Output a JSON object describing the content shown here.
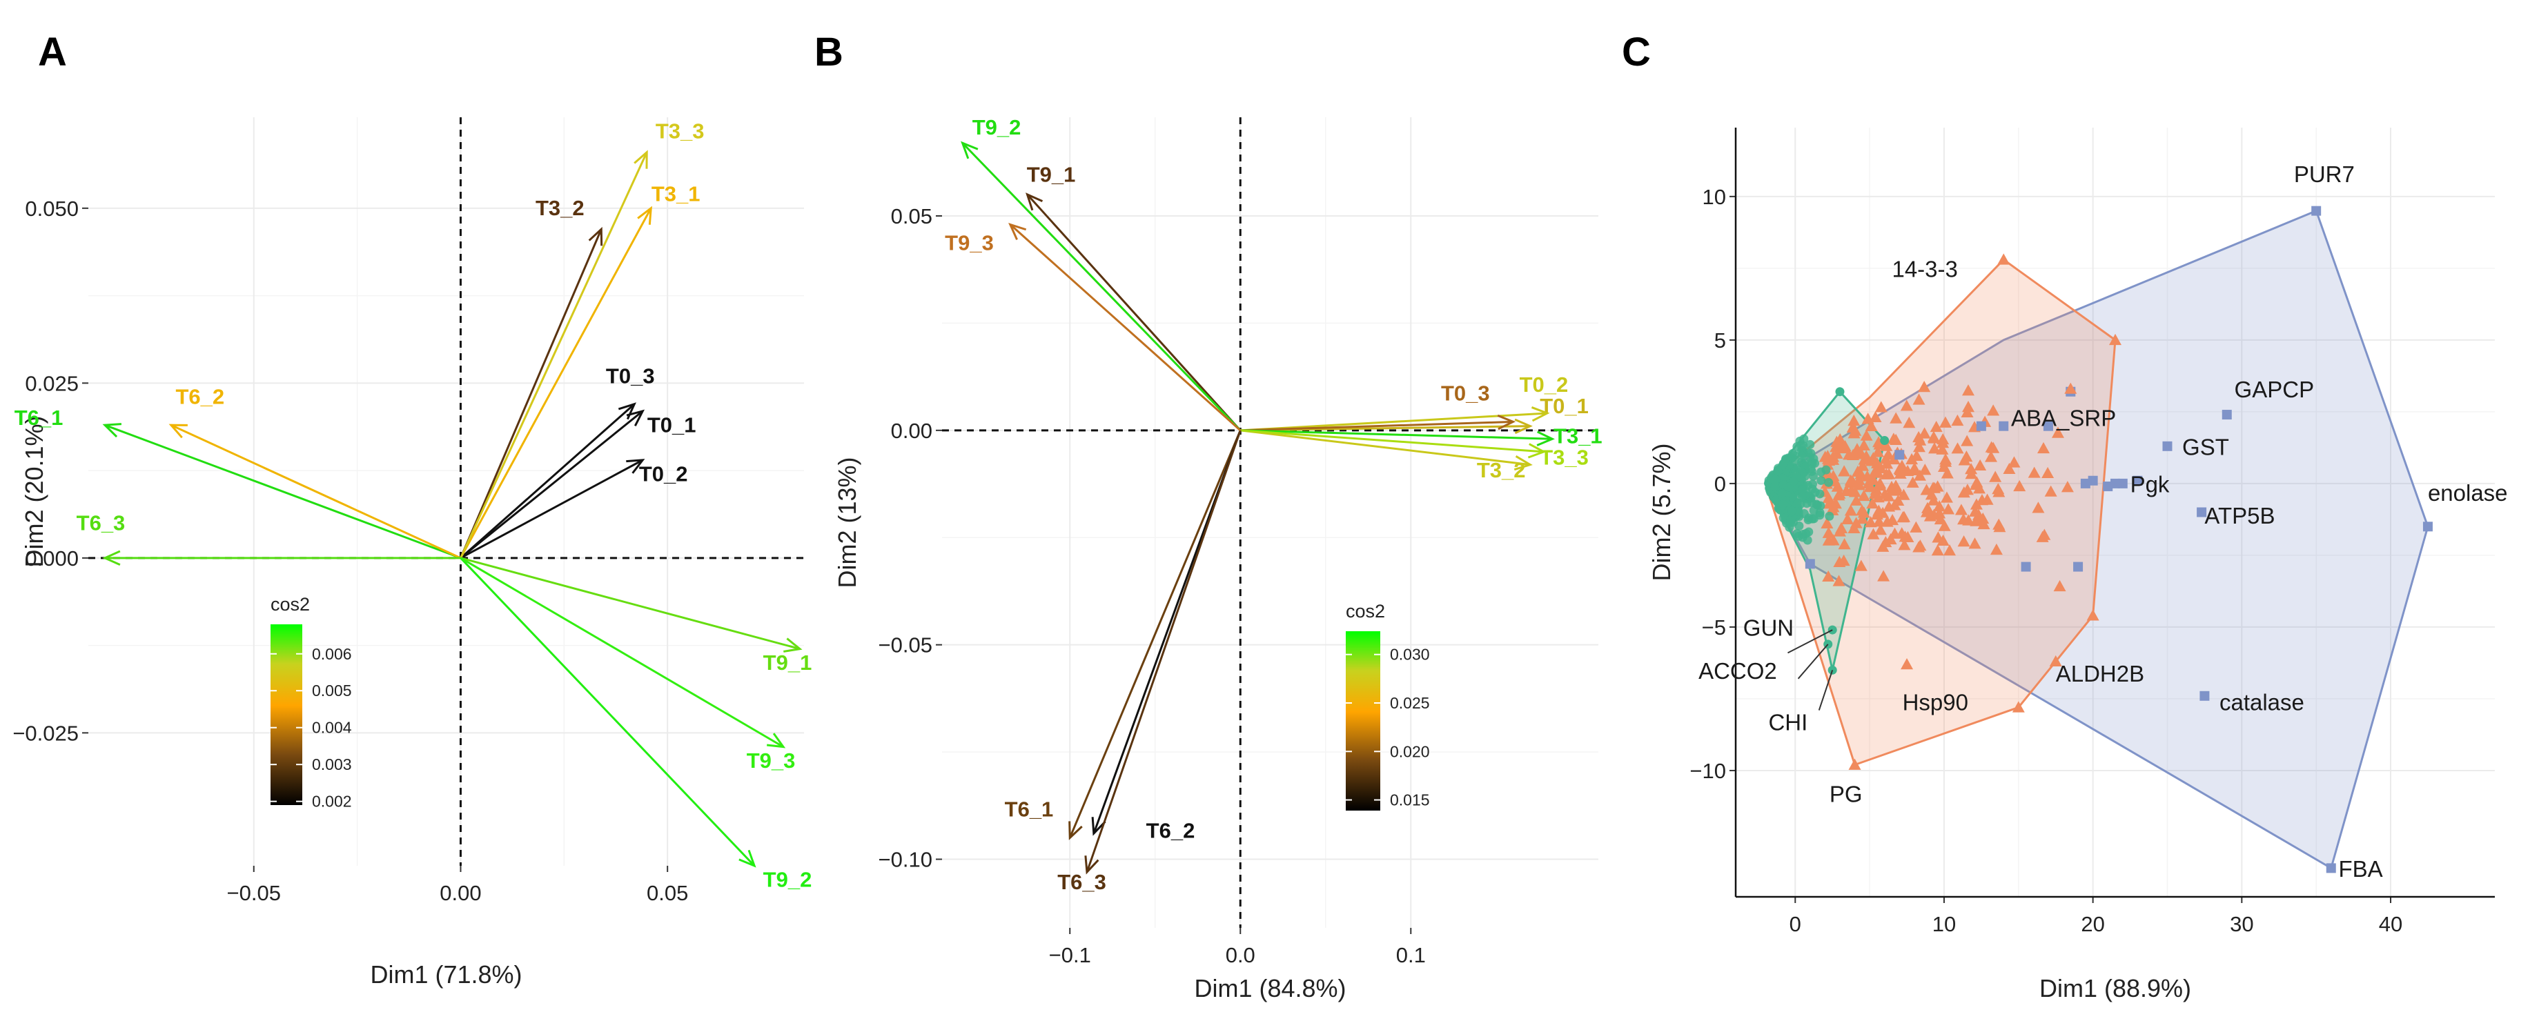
{
  "chart_data": [
    {
      "id": "A",
      "type": "scatter",
      "subtype": "pca-variable-arrows",
      "panel_label": "A",
      "xlabel": "Dim1 (71.8%)",
      "ylabel": "Dim2 (20.1%)",
      "xlim": [
        -0.09,
        0.083
      ],
      "ylim": [
        -0.044,
        0.063
      ],
      "xticks": [
        -0.05,
        0.0,
        0.05
      ],
      "xtick_labels": [
        "−0.05",
        "0.00",
        "0.05"
      ],
      "yticks": [
        -0.025,
        0.0,
        0.025,
        0.05
      ],
      "ytick_labels": [
        "−0.025",
        "0.000",
        "0.025",
        "0.050"
      ],
      "legend": {
        "title": "cos2",
        "position": "lower-left",
        "ticks": [
          0.002,
          0.003,
          0.004,
          0.005,
          0.006
        ],
        "tick_labels": [
          "0.002",
          "0.003",
          "0.004",
          "0.005",
          "0.006"
        ],
        "range": [
          0.0019,
          0.0068
        ],
        "colors": [
          "#000000",
          "#7a4a10",
          "#ffa500",
          "#c8d21e",
          "#00ff00"
        ]
      },
      "vectors": [
        {
          "name": "T0_1",
          "label": "T0_1",
          "x": 0.044,
          "y": 0.021,
          "color": "#111111",
          "lx": 0.051,
          "ly": 0.018
        },
        {
          "name": "T0_2",
          "label": "T0_2",
          "x": 0.044,
          "y": 0.014,
          "color": "#111111",
          "lx": 0.049,
          "ly": 0.011
        },
        {
          "name": "T0_3",
          "label": "T0_3",
          "x": 0.042,
          "y": 0.022,
          "color": "#111111",
          "lx": 0.041,
          "ly": 0.025
        },
        {
          "name": "T3_1",
          "label": "T3_1",
          "x": 0.046,
          "y": 0.05,
          "color": "#f0b400",
          "lx": 0.052,
          "ly": 0.051
        },
        {
          "name": "T3_2",
          "label": "T3_2",
          "x": 0.034,
          "y": 0.047,
          "color": "#5a3310",
          "lx": 0.024,
          "ly": 0.049
        },
        {
          "name": "T3_3",
          "label": "T3_3",
          "x": 0.045,
          "y": 0.058,
          "color": "#d4c81c",
          "lx": 0.053,
          "ly": 0.06
        },
        {
          "name": "T6_1",
          "label": "T6_1",
          "x": -0.086,
          "y": 0.019,
          "color": "#22dd11",
          "lx": -0.102,
          "ly": 0.019
        },
        {
          "name": "T6_2",
          "label": "T6_2",
          "x": -0.07,
          "y": 0.019,
          "color": "#f0b400",
          "lx": -0.063,
          "ly": 0.022
        },
        {
          "name": "T6_3",
          "label": "T6_3",
          "x": -0.086,
          "y": 0.0,
          "color": "#55dd11",
          "lx": -0.087,
          "ly": 0.004
        },
        {
          "name": "T9_1",
          "label": "T9_1",
          "x": 0.082,
          "y": -0.013,
          "color": "#66dd11",
          "lx": 0.079,
          "ly": -0.016
        },
        {
          "name": "T9_2",
          "label": "T9_2",
          "x": 0.071,
          "y": -0.044,
          "color": "#22ee11",
          "lx": 0.079,
          "ly": -0.047
        },
        {
          "name": "T9_3",
          "label": "T9_3",
          "x": 0.078,
          "y": -0.027,
          "color": "#33ee11",
          "lx": 0.075,
          "ly": -0.03
        }
      ]
    },
    {
      "id": "B",
      "type": "scatter",
      "subtype": "pca-variable-arrows",
      "panel_label": "B",
      "xlabel": "Dim1 (84.8%)",
      "ylabel": "Dim2 (13%)",
      "xlim": [
        -0.175,
        0.21
      ],
      "ylim": [
        -0.116,
        0.073
      ],
      "xticks": [
        -0.1,
        0.0,
        0.1
      ],
      "xtick_labels": [
        "−0.1",
        "0.0",
        "0.1"
      ],
      "yticks": [
        -0.1,
        -0.05,
        0.0,
        0.05
      ],
      "ytick_labels": [
        "−0.10",
        "−0.05",
        "0.00",
        "0.05"
      ],
      "legend": {
        "title": "cos2",
        "position": "lower-right",
        "ticks": [
          0.015,
          0.02,
          0.025,
          0.03
        ],
        "tick_labels": [
          "0.015",
          "0.020",
          "0.025",
          "0.030"
        ],
        "range": [
          0.0139,
          0.0324
        ],
        "colors": [
          "#000000",
          "#7a4a10",
          "#ffa500",
          "#c8d21e",
          "#00ff00"
        ]
      },
      "vectors": [
        {
          "name": "T0_1",
          "label": "T0_1",
          "x": 0.17,
          "y": 0.001,
          "color": "#c9b41a",
          "lx": 0.19,
          "ly": 0.004
        },
        {
          "name": "T0_2",
          "label": "T0_2",
          "x": 0.18,
          "y": 0.004,
          "color": "#c9c81a",
          "lx": 0.178,
          "ly": 0.009
        },
        {
          "name": "T0_3",
          "label": "T0_3",
          "x": 0.16,
          "y": 0.002,
          "color": "#a8661a",
          "lx": 0.132,
          "ly": 0.007
        },
        {
          "name": "T3_1",
          "label": "T3_1",
          "x": 0.183,
          "y": -0.002,
          "color": "#22dd11",
          "lx": 0.198,
          "ly": -0.003
        },
        {
          "name": "T3_2",
          "label": "T3_2",
          "x": 0.17,
          "y": -0.008,
          "color": "#c9c81a",
          "lx": 0.153,
          "ly": -0.011
        },
        {
          "name": "T3_3",
          "label": "T3_3",
          "x": 0.178,
          "y": -0.005,
          "color": "#aadd11",
          "lx": 0.19,
          "ly": -0.008
        },
        {
          "name": "T6_1",
          "label": "T6_1",
          "x": -0.1,
          "y": -0.095,
          "color": "#6b4010",
          "lx": -0.124,
          "ly": -0.09
        },
        {
          "name": "T6_2",
          "label": "T6_2",
          "x": -0.086,
          "y": -0.094,
          "color": "#111111",
          "lx": -0.041,
          "ly": -0.095
        },
        {
          "name": "T6_3",
          "label": "T6_3",
          "x": -0.09,
          "y": -0.103,
          "color": "#5a3410",
          "lx": -0.093,
          "ly": -0.107
        },
        {
          "name": "T9_1",
          "label": "T9_1",
          "x": -0.125,
          "y": 0.055,
          "color": "#5a3310",
          "lx": -0.111,
          "ly": 0.058
        },
        {
          "name": "T9_2",
          "label": "T9_2",
          "x": -0.163,
          "y": 0.067,
          "color": "#22dd11",
          "lx": -0.143,
          "ly": 0.069
        },
        {
          "name": "T9_3",
          "label": "T9_3",
          "x": -0.135,
          "y": 0.048,
          "color": "#c07020",
          "lx": -0.159,
          "ly": 0.042
        }
      ]
    },
    {
      "id": "C",
      "type": "scatter",
      "subtype": "pca-individuals-convex-hulls",
      "panel_label": "C",
      "xlabel": "Dim1 (88.9%)",
      "ylabel": "Dim2 (5.7%)",
      "xlim": [
        -4,
        47
      ],
      "ylim": [
        -14.4,
        12.4
      ],
      "xticks": [
        0,
        10,
        20,
        30,
        40
      ],
      "xtick_labels": [
        "0",
        "10",
        "20",
        "30",
        "40"
      ],
      "yticks": [
        -10,
        -5,
        0,
        5,
        10
      ],
      "ytick_labels": [
        "−10",
        "−5",
        "0",
        "5",
        "10"
      ],
      "groups": [
        {
          "name": "blue-squares",
          "color": "#7f93c8",
          "marker": "square",
          "hull": [
            [
              35,
              9.5
            ],
            [
              42.5,
              -1.5
            ],
            [
              36,
              -13.4
            ],
            [
              1,
              -2.8
            ],
            [
              -2,
              0
            ],
            [
              14,
              5
            ]
          ],
          "points": [
            {
              "x": 35,
              "y": 9.5,
              "label": "PUR7"
            },
            {
              "x": 29,
              "y": 2.4,
              "label": "GAPCP"
            },
            {
              "x": 25,
              "y": 1.3,
              "label": "GST"
            },
            {
              "x": 22,
              "y": 0,
              "label": "Pgk"
            },
            {
              "x": 27.3,
              "y": -1.0,
              "label": "ATP5B"
            },
            {
              "x": 42.5,
              "y": -1.5,
              "label": "enolase"
            },
            {
              "x": 27.5,
              "y": -7.4,
              "label": "catalase"
            },
            {
              "x": 36,
              "y": -13.4,
              "label": "FBA"
            },
            {
              "x": 18.5,
              "y": 3.2,
              "label": ""
            },
            {
              "x": 17,
              "y": 2.0,
              "label": ""
            },
            {
              "x": 14,
              "y": 2.0,
              "label": ""
            },
            {
              "x": 12.5,
              "y": 2.0,
              "label": ""
            },
            {
              "x": 20,
              "y": 0.1,
              "label": ""
            },
            {
              "x": 21,
              "y": -0.1,
              "label": ""
            },
            {
              "x": 19.5,
              "y": 0.0,
              "label": ""
            },
            {
              "x": 21.5,
              "y": 0.0,
              "label": ""
            },
            {
              "x": 23,
              "y": 0.1,
              "label": ""
            },
            {
              "x": 19,
              "y": -2.9,
              "label": ""
            },
            {
              "x": 15.5,
              "y": -2.9,
              "label": ""
            },
            {
              "x": 1,
              "y": -2.8,
              "label": ""
            },
            {
              "x": 7,
              "y": 1.0,
              "label": ""
            }
          ]
        },
        {
          "name": "orange-triangles",
          "color": "#f08a5d",
          "marker": "triangle",
          "hull": [
            [
              14,
              7.8
            ],
            [
              21.5,
              5
            ],
            [
              20,
              -4.6
            ],
            [
              15,
              -7.8
            ],
            [
              4,
              -9.8
            ],
            [
              -2,
              0
            ],
            [
              5,
              3
            ]
          ],
          "points": [
            {
              "x": 14,
              "y": 7.8,
              "label": "14-3-3"
            },
            {
              "x": 4,
              "y": -9.8,
              "label": "PG"
            },
            {
              "x": 15,
              "y": -7.8,
              "label": "Hsp90"
            },
            {
              "x": 20,
              "y": -4.6,
              "label": "ALDH2B"
            },
            {
              "x": 21.5,
              "y": 5,
              "label": ""
            },
            {
              "x": 18.5,
              "y": 3.3,
              "label": ""
            },
            {
              "x": 7.5,
              "y": -6.3,
              "label": ""
            },
            {
              "x": 17.5,
              "y": -6.2,
              "label": ""
            }
          ]
        },
        {
          "name": "green-circles",
          "color": "#3fb58e",
          "marker": "circle",
          "hull": [
            [
              3,
              3.2
            ],
            [
              6,
              1.5
            ],
            [
              2.5,
              -6.5
            ],
            [
              1,
              -3
            ],
            [
              -2,
              0
            ]
          ],
          "points": [
            {
              "x": 2.5,
              "y": -5.1,
              "label": "GUN"
            },
            {
              "x": 2.2,
              "y": -5.6,
              "label": "ACCO2"
            },
            {
              "x": 2.5,
              "y": -6.5,
              "label": "CHI"
            },
            {
              "x": 3,
              "y": 3.2,
              "label": ""
            },
            {
              "x": 6,
              "y": 1.5,
              "label": ""
            }
          ]
        }
      ],
      "annotations": [
        {
          "text": "PUR7",
          "x": 33.5,
          "y": 10.5
        },
        {
          "text": "14-3-3",
          "x": 6.5,
          "y": 7.2
        },
        {
          "text": "GAPCP",
          "x": 29.5,
          "y": 3.0
        },
        {
          "text": "ABA_SRP",
          "x": 14.5,
          "y": 2.0
        },
        {
          "text": "GST",
          "x": 26,
          "y": 1.0
        },
        {
          "text": "Pgk",
          "x": 22.5,
          "y": -0.3
        },
        {
          "text": "enolase",
          "x": 42.5,
          "y": -0.6
        },
        {
          "text": "ATP5B",
          "x": 27.5,
          "y": -1.4
        },
        {
          "text": "GUN",
          "x": -3.5,
          "y": -5.3
        },
        {
          "text": "ACCO2",
          "x": -6.5,
          "y": -6.8
        },
        {
          "text": "ALDH2B",
          "x": 17.5,
          "y": -6.9
        },
        {
          "text": "Hsp90",
          "x": 7.2,
          "y": -7.9
        },
        {
          "text": "catalase",
          "x": 28.5,
          "y": -7.9
        },
        {
          "text": "CHI",
          "x": -1.8,
          "y": -8.6
        },
        {
          "text": "PG",
          "x": 2.3,
          "y": -11.1
        },
        {
          "text": "FBA",
          "x": 36.5,
          "y": -13.7
        }
      ]
    }
  ]
}
